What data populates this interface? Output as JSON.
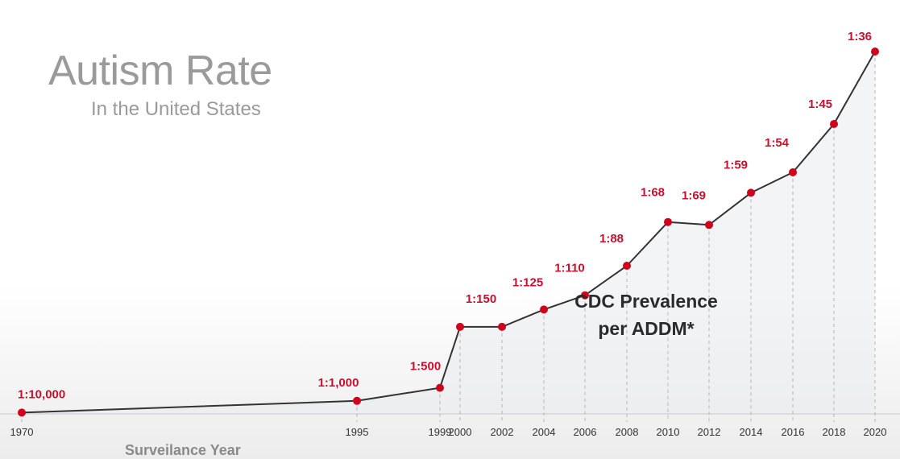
{
  "title": "Autism Rate",
  "subtitle": "In the United States",
  "chart_data": {
    "type": "line",
    "title": "Autism Rate",
    "subtitle": "In the United States",
    "xlabel": "Surveilance Year",
    "ylabel": "",
    "annotation": [
      "CDC Prevalence",
      "per ADDM*"
    ],
    "x": [
      "1970",
      "1995",
      "1999",
      "2000",
      "2002",
      "2004",
      "2006",
      "2008",
      "2010",
      "2012",
      "2014",
      "2016",
      "2018",
      "2020"
    ],
    "rate_labels": [
      "1:10,000",
      "1:1,000",
      "1:500",
      "1:150",
      "",
      "1:125",
      "1:110",
      "1:88",
      "1:68",
      "1:69",
      "1:59",
      "1:54",
      "1:45",
      "1:36"
    ],
    "y": [
      0.01,
      0.1,
      0.2,
      0.667,
      0.667,
      0.8,
      0.909,
      1.136,
      1.471,
      1.449,
      1.695,
      1.852,
      2.222,
      2.778
    ],
    "grid": "vertical dashed drop lines",
    "colors": {
      "line": "#333333",
      "point": "#d0021b",
      "label": "#c8102e",
      "fill": "#e9ebef"
    }
  }
}
